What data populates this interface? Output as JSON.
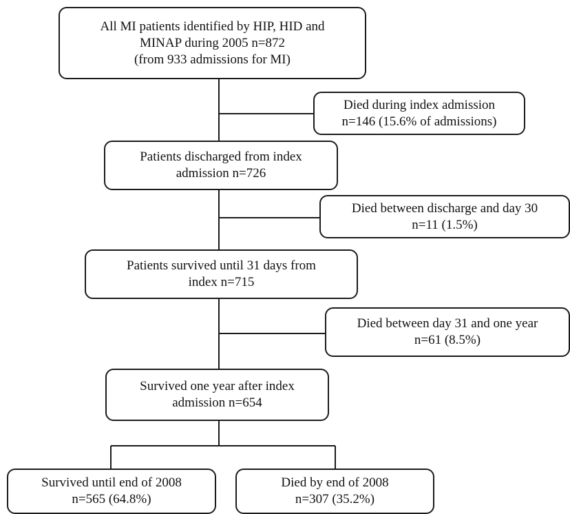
{
  "nodes": {
    "start": {
      "line1": "All MI patients identified by HIP, HID and",
      "line2": "MINAP during 2005 n=872",
      "line3": "(from 933 admissions for MI)"
    },
    "died1": {
      "line1": "Died during index admission",
      "line2": "n=146 (15.6% of admissions)"
    },
    "disc": {
      "line1": "Patients discharged from index",
      "line2": "admission n=726"
    },
    "died2": {
      "line1": "Died between discharge and day 30",
      "line2": "n=11 (1.5%)"
    },
    "surv31": {
      "line1": "Patients survived until 31 days from",
      "line2": "index n=715"
    },
    "died3": {
      "line1": "Died between day 31 and one year",
      "line2": "n=61 (8.5%)"
    },
    "surv1y": {
      "line1": "Survived one year after index",
      "line2": "admission n=654"
    },
    "alive08": {
      "line1": "Survived until end of 2008",
      "line2": "n=565 (64.8%)"
    },
    "dead08": {
      "line1": "Died by end of 2008",
      "line2": "n=307 (35.2%)"
    }
  },
  "colors": {
    "line": "#1a1a1a",
    "background": "#ffffff"
  }
}
